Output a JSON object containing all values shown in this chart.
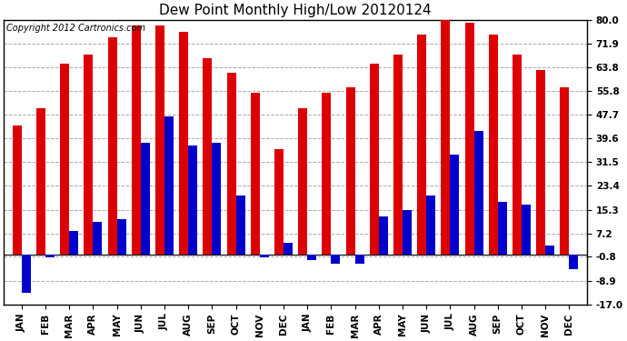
{
  "title": "Dew Point Monthly High/Low 20120124",
  "copyright": "Copyright 2012 Cartronics.com",
  "months": [
    "JAN",
    "FEB",
    "MAR",
    "APR",
    "MAY",
    "JUN",
    "JUL",
    "AUG",
    "SEP",
    "OCT",
    "NOV",
    "DEC",
    "JAN",
    "FEB",
    "MAR",
    "APR",
    "MAY",
    "JUN",
    "JUL",
    "AUG",
    "SEP",
    "OCT",
    "NOV",
    "DEC"
  ],
  "highs": [
    44,
    50,
    65,
    68,
    74,
    78,
    78,
    76,
    67,
    62,
    55,
    36,
    50,
    55,
    57,
    65,
    68,
    75,
    81,
    79,
    75,
    68,
    63,
    57
  ],
  "lows": [
    -13,
    -1,
    8,
    11,
    12,
    38,
    47,
    37,
    38,
    20,
    -1,
    4,
    -2,
    -3,
    -3,
    13,
    15,
    20,
    34,
    42,
    18,
    17,
    3,
    -5
  ],
  "ymin": -17.0,
  "ymax": 80.0,
  "yticks": [
    -17.0,
    -8.9,
    -0.8,
    7.2,
    15.3,
    23.4,
    31.5,
    39.6,
    47.7,
    55.8,
    63.8,
    71.9,
    80.0
  ],
  "bar_width": 0.38,
  "high_color": "#dd0000",
  "low_color": "#0000cc",
  "bg_color": "#ffffff",
  "grid_color": "#aaaaaa",
  "title_fontsize": 11,
  "axis_label_fontsize": 7.5,
  "copyright_fontsize": 7
}
